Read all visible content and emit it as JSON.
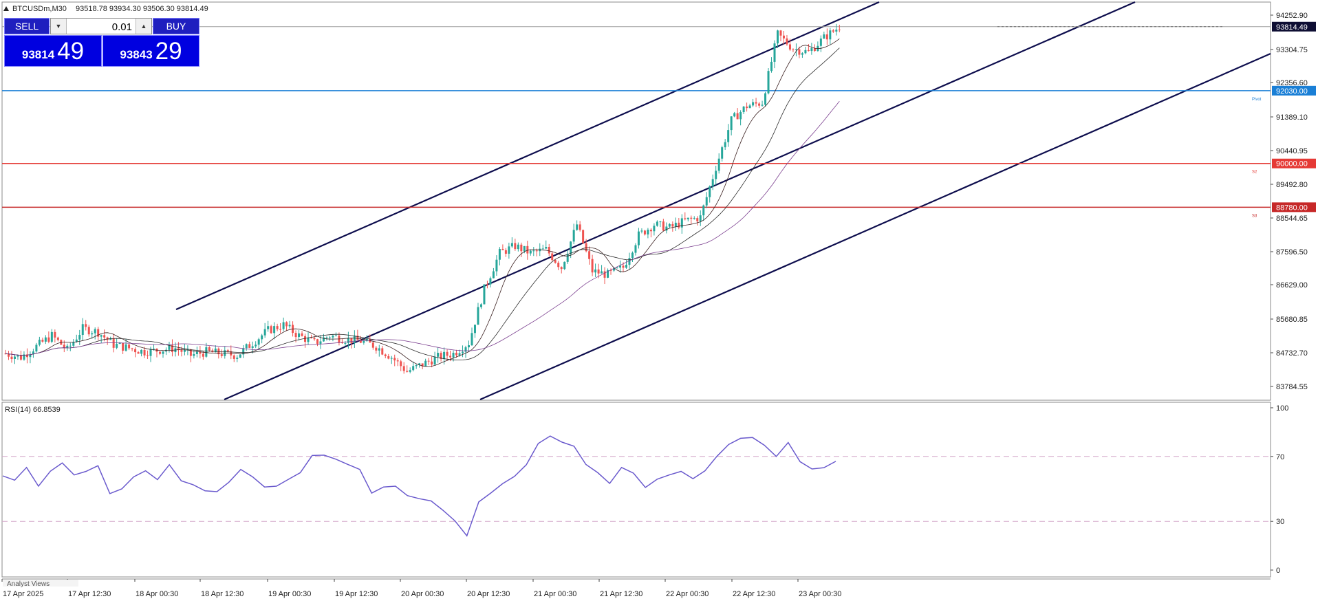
{
  "symbol_header": {
    "symbol": "BTCUSDm,M30",
    "ohlc": "93518.78 93934.30 93506.30 93814.49"
  },
  "trade_panel": {
    "sell_label": "SELL",
    "buy_label": "BUY",
    "lot": "0.01",
    "sell_price_small": "93814",
    "sell_price_big": "49",
    "buy_price_small": "93843",
    "buy_price_big": "29"
  },
  "rsi_label": "RSI(14) 66.8539",
  "bottom_tab": "Analyst Views",
  "colors": {
    "bull": "#26a69a",
    "bear": "#ef5350",
    "channel": "#0d0d4d",
    "pivot_line": "#1a7fd6",
    "support_line": "#e53935",
    "s3_line": "#c62828",
    "rsi_line": "#6a5acd",
    "rsi_level": "#d3a6c8",
    "current_price_bg": "#0e0e33",
    "pivot_bg": "#1a7fd6",
    "s2_bg": "#e53935",
    "s3_bg": "#c62828"
  },
  "chart_data": [
    {
      "type": "candlestick",
      "title": "BTCUSDm,M30",
      "ylim": [
        83400,
        94500
      ],
      "y_ticks": [
        "94252.90",
        "93304.75",
        "92356.60",
        "91389.10",
        "90440.95",
        "89492.80",
        "88544.65",
        "87596.50",
        "86629.00",
        "85680.85",
        "84732.70",
        "83784.55"
      ],
      "x_ticks": [
        "17 Apr 2025",
        "17 Apr 12:30",
        "18 Apr 00:30",
        "18 Apr 12:30",
        "19 Apr 00:30",
        "19 Apr 12:30",
        "20 Apr 00:30",
        "20 Apr 12:30",
        "21 Apr 00:30",
        "21 Apr 12:30",
        "22 Apr 00:30",
        "22 Apr 12:30",
        "23 Apr 00:30"
      ],
      "current_price": "93814.49",
      "horizontal_levels": [
        {
          "label": "Pivot",
          "price": 92030.0,
          "price_label": "92030.00"
        },
        {
          "label": "S2",
          "price": 90000.0,
          "price_label": "90000.00"
        },
        {
          "label": "S3",
          "price": 88780.0,
          "price_label": "88780.00"
        }
      ],
      "approx_close_path": [
        [
          0,
          84700
        ],
        [
          10,
          84600
        ],
        [
          20,
          84900
        ],
        [
          30,
          85200
        ],
        [
          40,
          84800
        ],
        [
          50,
          85400
        ],
        [
          60,
          85300
        ],
        [
          70,
          84950
        ],
        [
          80,
          84850
        ],
        [
          90,
          84750
        ],
        [
          100,
          84800
        ],
        [
          110,
          84850
        ],
        [
          120,
          84650
        ],
        [
          130,
          84750
        ],
        [
          140,
          84700
        ],
        [
          150,
          84650
        ],
        [
          160,
          85000
        ],
        [
          170,
          85350
        ],
        [
          180,
          85500
        ],
        [
          190,
          85200
        ],
        [
          200,
          85000
        ],
        [
          210,
          85200
        ],
        [
          220,
          85100
        ],
        [
          230,
          85050
        ],
        [
          240,
          84900
        ],
        [
          250,
          84600
        ],
        [
          260,
          84200
        ],
        [
          270,
          84400
        ],
        [
          280,
          84600
        ],
        [
          290,
          84700
        ],
        [
          300,
          85000
        ],
        [
          310,
          86500
        ],
        [
          320,
          87500
        ],
        [
          330,
          87700
        ],
        [
          340,
          87500
        ],
        [
          350,
          87600
        ],
        [
          360,
          87100
        ],
        [
          370,
          88300
        ],
        [
          380,
          87000
        ],
        [
          390,
          86900
        ],
        [
          400,
          87100
        ],
        [
          410,
          88000
        ],
        [
          420,
          88300
        ],
        [
          430,
          88200
        ],
        [
          440,
          88400
        ],
        [
          450,
          88500
        ],
        [
          460,
          89900
        ],
        [
          470,
          91200
        ],
        [
          480,
          91600
        ],
        [
          490,
          91700
        ],
        [
          500,
          93600
        ],
        [
          510,
          93200
        ],
        [
          520,
          93100
        ],
        [
          530,
          93500
        ],
        [
          540,
          93814
        ]
      ]
    },
    {
      "type": "line",
      "title": "RSI(14) 66.8539",
      "ylim": [
        0,
        100
      ],
      "y_ticks": [
        "100",
        "70",
        "30",
        "0"
      ],
      "levels": [
        70,
        30
      ],
      "values": [
        58,
        56,
        62,
        52,
        60,
        66,
        58,
        62,
        64,
        48,
        50,
        58,
        60,
        56,
        64,
        55,
        52,
        50,
        48,
        55,
        62,
        58,
        50,
        52,
        55,
        60,
        70,
        72,
        68,
        66,
        62,
        48,
        50,
        52,
        45,
        44,
        42,
        38,
        30,
        22,
        42,
        48,
        52,
        58,
        64,
        78,
        82,
        80,
        76,
        66,
        60,
        54,
        62,
        60,
        50,
        56,
        58,
        62,
        56,
        62,
        70,
        78,
        80,
        82,
        76,
        70,
        78,
        68,
        62,
        64,
        67
      ]
    }
  ]
}
